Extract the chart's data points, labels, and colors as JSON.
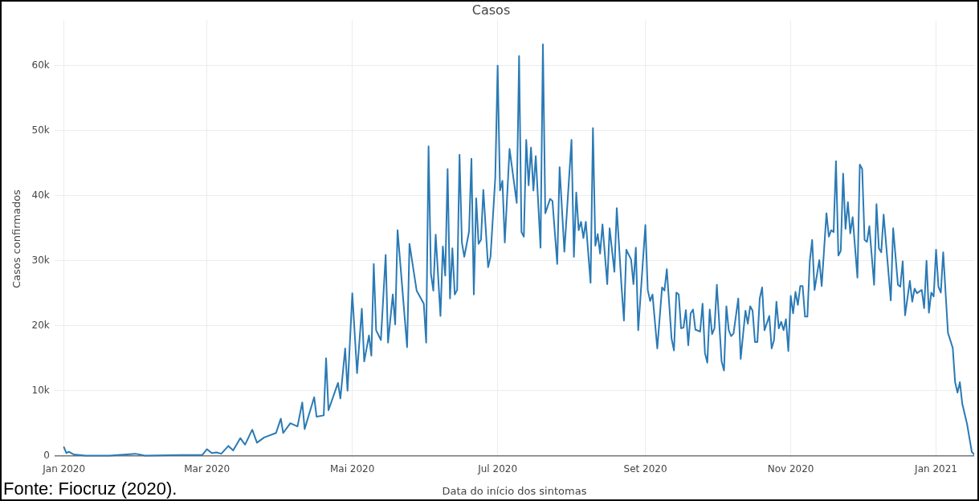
{
  "chart_data": {
    "type": "line",
    "title": "Casos",
    "xlabel": "Data do início dos sintomas",
    "ylabel": "Casos confirmados",
    "annotations": [
      "Fonte: Fiocruz (2020)."
    ],
    "x": [
      "2020-01-01",
      "2020-01-02",
      "2020-01-03",
      "2020-01-05",
      "2020-01-10",
      "2020-01-20",
      "2020-01-31",
      "2020-02-04",
      "2020-02-19",
      "2020-02-28",
      "2020-03-01",
      "2020-03-03",
      "2020-03-05",
      "2020-03-07",
      "2020-03-10",
      "2020-03-12",
      "2020-03-15",
      "2020-03-17",
      "2020-03-20",
      "2020-03-22",
      "2020-03-25",
      "2020-03-30",
      "2020-04-01",
      "2020-04-02",
      "2020-04-05",
      "2020-04-08",
      "2020-04-10",
      "2020-04-11",
      "2020-04-15",
      "2020-04-16",
      "2020-04-19",
      "2020-04-20",
      "2020-04-21",
      "2020-04-25",
      "2020-04-26",
      "2020-04-28",
      "2020-04-29",
      "2020-05-01",
      "2020-05-03",
      "2020-05-05",
      "2020-05-06",
      "2020-05-08",
      "2020-05-09",
      "2020-05-10",
      "2020-05-11",
      "2020-05-13",
      "2020-05-15",
      "2020-05-16",
      "2020-05-18",
      "2020-05-19",
      "2020-05-20",
      "2020-05-23",
      "2020-05-24",
      "2020-05-25",
      "2020-05-28",
      "2020-05-31",
      "2020-06-01",
      "2020-06-02",
      "2020-06-03",
      "2020-06-04",
      "2020-06-05",
      "2020-06-07",
      "2020-06-08",
      "2020-06-09",
      "2020-06-10",
      "2020-06-11",
      "2020-06-12",
      "2020-06-13",
      "2020-06-14",
      "2020-06-15",
      "2020-06-16",
      "2020-06-17",
      "2020-06-19",
      "2020-06-20",
      "2020-06-21",
      "2020-06-22",
      "2020-06-23",
      "2020-06-24",
      "2020-06-25",
      "2020-06-27",
      "2020-06-28",
      "2020-06-30",
      "2020-07-01",
      "2020-07-02",
      "2020-07-03",
      "2020-07-04",
      "2020-07-06",
      "2020-07-09",
      "2020-07-10",
      "2020-07-11",
      "2020-07-12",
      "2020-07-13",
      "2020-07-14",
      "2020-07-15",
      "2020-07-16",
      "2020-07-17",
      "2020-07-19",
      "2020-07-20",
      "2020-07-21",
      "2020-07-23",
      "2020-07-24",
      "2020-07-26",
      "2020-07-27",
      "2020-07-29",
      "2020-07-30",
      "2020-08-01",
      "2020-08-02",
      "2020-08-03",
      "2020-08-04",
      "2020-08-05",
      "2020-08-06",
      "2020-08-07",
      "2020-08-09",
      "2020-08-10",
      "2020-08-11",
      "2020-08-12",
      "2020-08-13",
      "2020-08-14",
      "2020-08-16",
      "2020-08-17",
      "2020-08-19",
      "2020-08-20",
      "2020-08-22",
      "2020-08-23",
      "2020-08-24",
      "2020-08-26",
      "2020-08-27",
      "2020-08-28",
      "2020-08-29",
      "2020-09-01",
      "2020-09-02",
      "2020-09-03",
      "2020-09-04",
      "2020-09-06",
      "2020-09-08",
      "2020-09-09",
      "2020-09-10",
      "2020-09-12",
      "2020-09-13",
      "2020-09-14",
      "2020-09-15",
      "2020-09-16",
      "2020-09-17",
      "2020-09-18",
      "2020-09-19",
      "2020-09-20",
      "2020-09-21",
      "2020-09-22",
      "2020-09-24",
      "2020-09-25",
      "2020-09-26",
      "2020-09-27",
      "2020-09-28",
      "2020-09-29",
      "2020-09-30",
      "2020-10-01",
      "2020-10-03",
      "2020-10-04",
      "2020-10-05",
      "2020-10-06",
      "2020-10-07",
      "2020-10-08",
      "2020-10-10",
      "2020-10-11",
      "2020-10-13",
      "2020-10-14",
      "2020-10-15",
      "2020-10-16",
      "2020-10-17",
      "2020-10-18",
      "2020-10-19",
      "2020-10-20",
      "2020-10-21",
      "2020-10-23",
      "2020-10-24",
      "2020-10-25",
      "2020-10-26",
      "2020-10-27",
      "2020-10-28",
      "2020-10-29",
      "2020-10-30",
      "2020-10-31",
      "2020-11-01",
      "2020-11-02",
      "2020-11-03",
      "2020-11-04",
      "2020-11-05",
      "2020-11-06",
      "2020-11-07",
      "2020-11-08",
      "2020-11-09",
      "2020-11-10",
      "2020-11-11",
      "2020-11-13",
      "2020-11-14",
      "2020-11-16",
      "2020-11-17",
      "2020-11-18",
      "2020-11-19",
      "2020-11-20",
      "2020-11-21",
      "2020-11-22",
      "2020-11-23",
      "2020-11-24",
      "2020-11-25",
      "2020-11-26",
      "2020-11-27",
      "2020-11-29",
      "2020-11-30",
      "2020-12-01",
      "2020-12-02",
      "2020-12-03",
      "2020-12-04",
      "2020-12-06",
      "2020-12-07",
      "2020-12-08",
      "2020-12-09",
      "2020-12-10",
      "2020-12-13",
      "2020-12-14",
      "2020-12-16",
      "2020-12-17",
      "2020-12-18",
      "2020-12-19",
      "2020-12-21",
      "2020-12-22",
      "2020-12-23",
      "2020-12-24",
      "2020-12-26",
      "2020-12-27",
      "2020-12-28",
      "2020-12-29",
      "2020-12-30",
      "2020-12-31",
      "2021-01-01",
      "2021-01-02",
      "2021-01-03",
      "2021-01-04",
      "2021-01-06",
      "2021-01-08",
      "2021-01-09",
      "2021-01-10",
      "2021-01-11",
      "2021-01-12",
      "2021-01-14",
      "2021-01-16",
      "2021-01-17"
    ],
    "series": [
      {
        "color": "#2a7ab5",
        "values": [
          1300,
          400,
          600,
          200,
          0,
          0,
          300,
          0,
          100,
          100,
          1000,
          400,
          500,
          300,
          1500,
          800,
          2700,
          1700,
          4000,
          2000,
          2800,
          3500,
          5700,
          3500,
          5000,
          4500,
          8200,
          4100,
          9000,
          6000,
          6200,
          15000,
          7000,
          11200,
          8800,
          16500,
          10000,
          25000,
          12700,
          22600,
          14500,
          18500,
          15400,
          29500,
          19300,
          17800,
          30900,
          17400,
          24800,
          20200,
          34700,
          21200,
          16700,
          32600,
          25400,
          23400,
          17400,
          47600,
          28000,
          25400,
          34000,
          21500,
          32200,
          27700,
          44100,
          24200,
          31900,
          24800,
          25500,
          46300,
          32800,
          30600,
          34500,
          45700,
          24800,
          39600,
          32600,
          33200,
          40900,
          29000,
          30600,
          42700,
          60000,
          40800,
          42300,
          32800,
          47200,
          38900,
          61500,
          34400,
          33700,
          48600,
          41600,
          47400,
          40800,
          46100,
          32000,
          63300,
          37300,
          39500,
          39200,
          29500,
          44400,
          31400,
          37100,
          48600,
          30600,
          40500,
          34700,
          36000,
          33500,
          36000,
          26600,
          50400,
          32300,
          34100,
          31100,
          35600,
          26400,
          35000,
          28300,
          38100,
          26000,
          20800,
          31700,
          30200,
          26400,
          32000,
          19300,
          35500,
          25500,
          23800,
          24800,
          16500,
          25900,
          25400,
          28700,
          18000,
          16200,
          25100,
          24800,
          19600,
          19700,
          22400,
          17000,
          21900,
          22500,
          19400,
          19100,
          23400,
          15800,
          14300,
          22500,
          18700,
          19600,
          26300,
          14500,
          13100,
          23000,
          19300,
          18400,
          18800,
          24200,
          14900,
          22300,
          20300,
          23000,
          22300,
          17500,
          17500,
          24200,
          25900,
          19300,
          21500,
          16500,
          17800,
          23700,
          19600,
          20600,
          19300,
          21000,
          16100,
          24600,
          21900,
          25200,
          23200,
          26100,
          26100,
          21400,
          21400,
          29900,
          33200,
          25500,
          30100,
          26100,
          37300,
          33700,
          34700,
          34400,
          45300,
          30800,
          31500,
          43400,
          34900,
          39000,
          34200,
          36700,
          27400,
          44800,
          44100,
          33200,
          32900,
          35300,
          26300,
          38700,
          31900,
          31300,
          37100,
          23900,
          35000,
          26300,
          26000,
          29900,
          21600,
          26900,
          23700,
          25700,
          25000,
          25500,
          22700,
          30000,
          22000,
          25100,
          24500,
          31700,
          26000,
          25100,
          31300,
          18900,
          16600,
          11300,
          9700,
          11300,
          8000,
          4900,
          600,
          200
        ]
      }
    ],
    "xlim": [
      "2019-12-28",
      "2021-01-17"
    ],
    "ylim": [
      -300,
      67000
    ],
    "xticks": [
      {
        "value": "2020-01-01",
        "label": "Jan 2020"
      },
      {
        "value": "2020-03-01",
        "label": "Mar 2020"
      },
      {
        "value": "2020-05-01",
        "label": "Mai 2020"
      },
      {
        "value": "2020-07-01",
        "label": "Jul 2020"
      },
      {
        "value": "2020-09-01",
        "label": "Set 2020"
      },
      {
        "value": "2020-11-01",
        "label": "Nov 2020"
      },
      {
        "value": "2021-01-01",
        "label": "Jan 2021"
      }
    ],
    "yticks": [
      0,
      {
        "value": 10000,
        "label": "10k"
      },
      {
        "value": 20000,
        "label": "20k"
      },
      {
        "value": 30000,
        "label": "30k"
      },
      {
        "value": 40000,
        "label": "40k"
      },
      {
        "value": 50000,
        "label": "50k"
      },
      {
        "value": 60000,
        "label": "60k"
      }
    ],
    "grid": true,
    "legend": false,
    "marker": "none",
    "line_style": "solid"
  }
}
